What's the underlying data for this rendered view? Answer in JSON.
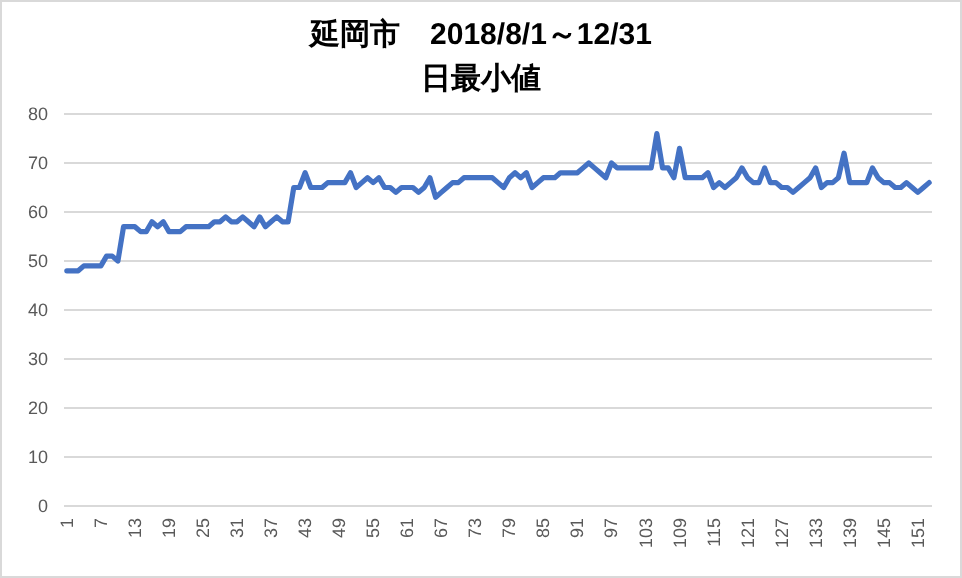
{
  "chart_data": {
    "type": "line",
    "title": "延岡市　2018/8/1～12/31",
    "subtitle": "日最小値",
    "categories": [
      "1",
      null,
      null,
      null,
      null,
      null,
      "7",
      null,
      null,
      null,
      null,
      null,
      "13",
      null,
      null,
      null,
      null,
      null,
      "19",
      null,
      null,
      null,
      null,
      null,
      "25",
      null,
      null,
      null,
      null,
      null,
      "31",
      null,
      null,
      null,
      null,
      null,
      "37",
      null,
      null,
      null,
      null,
      null,
      "43",
      null,
      null,
      null,
      null,
      null,
      "49",
      null,
      null,
      null,
      null,
      null,
      "55",
      null,
      null,
      null,
      null,
      null,
      "61",
      null,
      null,
      null,
      null,
      null,
      "67",
      null,
      null,
      null,
      null,
      null,
      "73",
      null,
      null,
      null,
      null,
      null,
      "79",
      null,
      null,
      null,
      null,
      null,
      "85",
      null,
      null,
      null,
      null,
      null,
      "91",
      null,
      null,
      null,
      null,
      null,
      "97",
      null,
      null,
      null,
      null,
      null,
      "103",
      null,
      null,
      null,
      null,
      null,
      "109",
      null,
      null,
      null,
      null,
      null,
      "115",
      null,
      null,
      null,
      null,
      null,
      "121",
      null,
      null,
      null,
      null,
      null,
      "127",
      null,
      null,
      null,
      null,
      null,
      "133",
      null,
      null,
      null,
      null,
      null,
      "139",
      null,
      null,
      null,
      null,
      null,
      "145",
      null,
      null,
      null,
      null,
      null,
      "151",
      null,
      null
    ],
    "series": [
      {
        "color": "#4472c4",
        "values": [
          48,
          48,
          48,
          49,
          49,
          49,
          49,
          51,
          51,
          50,
          57,
          57,
          57,
          56,
          56,
          58,
          57,
          58,
          56,
          56,
          56,
          57,
          57,
          57,
          57,
          57,
          58,
          58,
          59,
          58,
          58,
          59,
          58,
          57,
          59,
          57,
          58,
          59,
          58,
          58,
          65,
          65,
          68,
          65,
          65,
          65,
          66,
          66,
          66,
          66,
          68,
          65,
          66,
          67,
          66,
          67,
          65,
          65,
          64,
          65,
          65,
          65,
          64,
          65,
          67,
          63,
          64,
          65,
          66,
          66,
          67,
          67,
          67,
          67,
          67,
          67,
          66,
          65,
          67,
          68,
          67,
          68,
          65,
          66,
          67,
          67,
          67,
          68,
          68,
          68,
          68,
          69,
          70,
          69,
          68,
          67,
          70,
          69,
          69,
          69,
          69,
          69,
          69,
          69,
          76,
          69,
          69,
          67,
          73,
          67,
          67,
          67,
          67,
          68,
          65,
          66,
          65,
          66,
          67,
          69,
          67,
          66,
          66,
          69,
          66,
          66,
          65,
          65,
          64,
          65,
          66,
          67,
          69,
          65,
          66,
          66,
          67,
          72,
          66,
          66,
          66,
          66,
          69,
          67,
          66,
          66,
          65,
          65,
          66,
          65,
          64,
          65,
          66
        ]
      }
    ],
    "ylim": [
      0,
      80
    ],
    "yticks": [
      0,
      10,
      20,
      30,
      40,
      50,
      60,
      70,
      80
    ],
    "grid": "y",
    "line_style": "solid",
    "marker": "none"
  }
}
